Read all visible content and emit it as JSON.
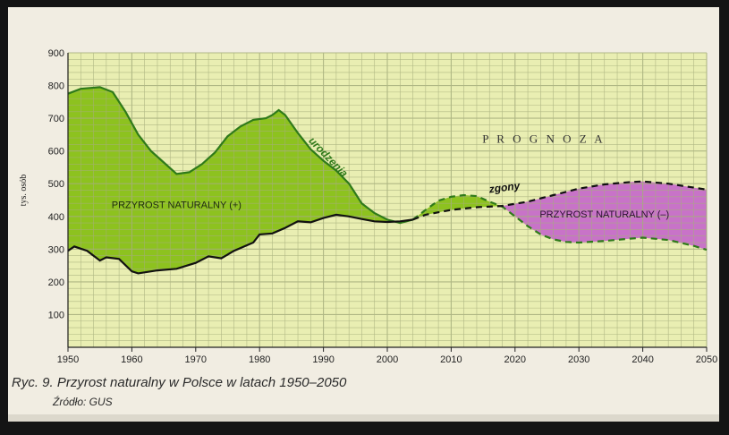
{
  "caption": "Ryc. 9. Przyrost naturalny w Polsce w latach 1950–2050",
  "source": "Źródło: GUS",
  "chart_data": {
    "type": "line",
    "title": "",
    "ylabel": "tys. osób",
    "xlabel": "",
    "xlim": [
      1950,
      2050
    ],
    "ylim": [
      0,
      900
    ],
    "x_ticks": [
      "1950",
      "1960",
      "1970",
      "1980",
      "1990",
      "2000",
      "2010",
      "2020",
      "2030",
      "2040",
      "2050"
    ],
    "y_ticks": [
      "100",
      "200",
      "300",
      "400",
      "500",
      "600",
      "700",
      "800",
      "900"
    ],
    "grid": true,
    "forecast_start": 2004,
    "forecast_label": "P R O G N O Z A",
    "series": [
      {
        "name": "urodzenia",
        "points": [
          [
            1950,
            775
          ],
          [
            1952,
            790
          ],
          [
            1955,
            795
          ],
          [
            1957,
            780
          ],
          [
            1959,
            720
          ],
          [
            1961,
            650
          ],
          [
            1963,
            600
          ],
          [
            1965,
            565
          ],
          [
            1967,
            530
          ],
          [
            1969,
            535
          ],
          [
            1971,
            560
          ],
          [
            1973,
            595
          ],
          [
            1975,
            645
          ],
          [
            1977,
            675
          ],
          [
            1979,
            695
          ],
          [
            1981,
            700
          ],
          [
            1982,
            710
          ],
          [
            1983,
            725
          ],
          [
            1984,
            710
          ],
          [
            1986,
            655
          ],
          [
            1988,
            605
          ],
          [
            1990,
            570
          ],
          [
            1992,
            540
          ],
          [
            1994,
            500
          ],
          [
            1996,
            440
          ],
          [
            1998,
            410
          ],
          [
            2000,
            390
          ],
          [
            2002,
            380
          ],
          [
            2004,
            390
          ],
          [
            2006,
            420
          ],
          [
            2008,
            448
          ],
          [
            2010,
            460
          ],
          [
            2012,
            465
          ],
          [
            2014,
            462
          ],
          [
            2016,
            445
          ],
          [
            2018,
            430
          ],
          [
            2020,
            400
          ],
          [
            2022,
            370
          ],
          [
            2024,
            345
          ],
          [
            2026,
            330
          ],
          [
            2028,
            322
          ],
          [
            2030,
            320
          ],
          [
            2034,
            325
          ],
          [
            2038,
            332
          ],
          [
            2040,
            335
          ],
          [
            2044,
            328
          ],
          [
            2048,
            310
          ],
          [
            2050,
            298
          ]
        ]
      },
      {
        "name": "zgony",
        "points": [
          [
            1950,
            295
          ],
          [
            1951,
            308
          ],
          [
            1953,
            295
          ],
          [
            1955,
            265
          ],
          [
            1956,
            275
          ],
          [
            1958,
            270
          ],
          [
            1960,
            232
          ],
          [
            1961,
            226
          ],
          [
            1964,
            235
          ],
          [
            1967,
            240
          ],
          [
            1970,
            258
          ],
          [
            1972,
            278
          ],
          [
            1974,
            272
          ],
          [
            1976,
            295
          ],
          [
            1979,
            320
          ],
          [
            1980,
            345
          ],
          [
            1982,
            348
          ],
          [
            1984,
            365
          ],
          [
            1986,
            385
          ],
          [
            1988,
            382
          ],
          [
            1990,
            395
          ],
          [
            1992,
            405
          ],
          [
            1994,
            400
          ],
          [
            1996,
            392
          ],
          [
            1998,
            385
          ],
          [
            2000,
            383
          ],
          [
            2002,
            385
          ],
          [
            2004,
            390
          ],
          [
            2006,
            405
          ],
          [
            2010,
            420
          ],
          [
            2014,
            428
          ],
          [
            2018,
            432
          ],
          [
            2022,
            445
          ],
          [
            2026,
            465
          ],
          [
            2030,
            485
          ],
          [
            2034,
            498
          ],
          [
            2038,
            505
          ],
          [
            2040,
            507
          ],
          [
            2044,
            500
          ],
          [
            2048,
            488
          ],
          [
            2050,
            482
          ]
        ]
      }
    ],
    "labels": {
      "urodzenia": "urodzenia",
      "zgony": "zgony",
      "positive": "PRZYROST NATURALNY (+)",
      "negative": "PRZYROST NATURALNY (–)"
    },
    "colors": {
      "positive_fill": "#8dc21f",
      "negative_fill": "#c873c8",
      "births_line": "#2f7a1a",
      "deaths_line": "#111111",
      "grid_bg": "#e9eeb2",
      "grid_line": "#a6ae7c"
    }
  }
}
